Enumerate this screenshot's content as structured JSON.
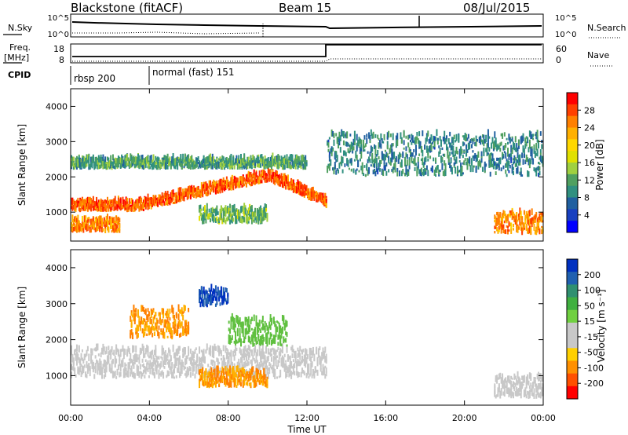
{
  "header": {
    "station": "Blackstone (fitACF)",
    "beam": "Beam 15",
    "date": "08/Jul/2015"
  },
  "noise_panel": {
    "left_label": "N.Sky",
    "right_label": "N.Search",
    "left_ticks": [
      "10^5",
      "10^0"
    ],
    "right_ticks": [
      "10^5",
      "10^0"
    ]
  },
  "freq_panel": {
    "left_label_top": "Freq.",
    "left_label_unit": "[MHz]",
    "right_label": "Nave",
    "left_ticks": [
      "18",
      "8"
    ],
    "right_ticks": [
      "60",
      "0"
    ]
  },
  "cpid_panel": {
    "label": "CPID",
    "segments": [
      {
        "name": "rbsp 200",
        "start_hour": 0
      },
      {
        "name": "normal (fast) 151",
        "start_hour": 4
      }
    ]
  },
  "power_panel": {
    "ylabel": "Slant Range [km]",
    "colorbar_label": "Power [dB]",
    "colorbar_ticks": [
      "28",
      "24",
      "20",
      "16",
      "12",
      "8",
      "4"
    ],
    "colorbar_colors": [
      "#ff0000",
      "#ff4000",
      "#ff8000",
      "#ffb000",
      "#ffd800",
      "#e0e000",
      "#a0d040",
      "#50a060",
      "#309080",
      "#2060a0",
      "#1840c0",
      "#0000ff"
    ]
  },
  "velocity_panel": {
    "ylabel": "Slant Range [km]",
    "colorbar_label": "Velocity [m s⁻¹]",
    "colorbar_ticks": [
      "200",
      "100",
      "50",
      "15",
      "-15",
      "-50",
      "-100",
      "-200"
    ],
    "colorbar_colors": [
      "#0030c0",
      "#2060b0",
      "#309070",
      "#40b040",
      "#70d040",
      "#c8c8c8",
      "#c8c8c8",
      "#ffd000",
      "#ff9000",
      "#ff5000",
      "#ff0000"
    ]
  },
  "x_axis": {
    "label": "Time UT",
    "ticks": [
      "00:00",
      "04:00",
      "08:00",
      "12:00",
      "16:00",
      "20:00",
      "00:00"
    ]
  },
  "y_axis": {
    "ticks": [
      "4000",
      "3000",
      "2000",
      "1000"
    ]
  },
  "chart_data": [
    {
      "type": "heatmap",
      "title": "Power [dB]",
      "x": {
        "unit": "hour UT",
        "range": [
          0,
          24
        ]
      },
      "y": {
        "unit": "km",
        "range": [
          180,
          4500
        ]
      },
      "colorbar_range": [
        0,
        30
      ],
      "echo_regions": [
        {
          "t0": 0.0,
          "t1": 13.0,
          "r0": 1000,
          "r1": 1300,
          "power": 26,
          "note": "main band rising from ~1050 to ~2000 km near 10:00"
        },
        {
          "t0": 0.0,
          "t1": 2.5,
          "r0": 400,
          "r1": 800,
          "power": 24
        },
        {
          "t0": 6.5,
          "t1": 10.0,
          "r0": 650,
          "r1": 1100,
          "power": 12
        },
        {
          "t0": 21.5,
          "t1": 24.0,
          "r0": 350,
          "r1": 1000,
          "power": 24
        },
        {
          "t0": 0.0,
          "t1": 12.0,
          "r0": 2200,
          "r1": 2500,
          "power": 10
        },
        {
          "t0": 13.0,
          "t1": 24.0,
          "r0": 2000,
          "r1": 3300,
          "power": 8
        }
      ]
    },
    {
      "type": "heatmap",
      "title": "Velocity [m s⁻¹]",
      "x": {
        "unit": "hour UT",
        "range": [
          0,
          24
        ]
      },
      "y": {
        "unit": "km",
        "range": [
          180,
          4500
        ]
      },
      "colorbar_range": [
        -200,
        200
      ],
      "echo_regions": [
        {
          "t0": 0.0,
          "t1": 13.0,
          "r0": 900,
          "r1": 1800,
          "velocity": 0
        },
        {
          "t0": 6.5,
          "t1": 10.0,
          "r0": 650,
          "r1": 1150,
          "velocity": -50
        },
        {
          "t0": 3.0,
          "t1": 6.0,
          "r0": 2000,
          "r1": 2900,
          "velocity": -50
        },
        {
          "t0": 6.5,
          "t1": 8.0,
          "r0": 2900,
          "r1": 3400,
          "velocity": 150
        },
        {
          "t0": 8.0,
          "t1": 11.0,
          "r0": 1800,
          "r1": 2600,
          "velocity": 30
        },
        {
          "t0": 21.5,
          "t1": 24.0,
          "r0": 350,
          "r1": 1000,
          "velocity": 0
        }
      ]
    },
    {
      "type": "line",
      "title": "Freq.",
      "ylabel": "[MHz]",
      "ylim": [
        8,
        18
      ],
      "x": [
        0,
        4,
        13,
        13,
        24
      ],
      "series": [
        {
          "values": [
            10,
            10,
            10,
            18,
            18
          ]
        }
      ]
    }
  ]
}
